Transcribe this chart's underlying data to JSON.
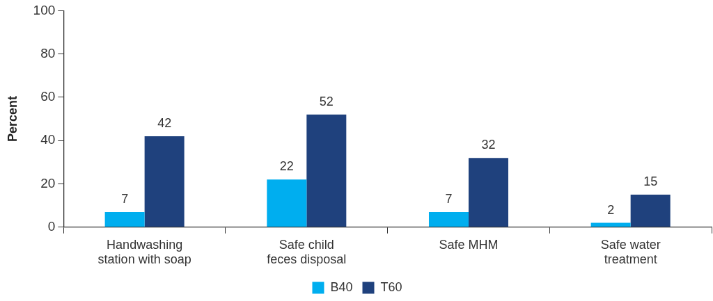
{
  "chart_data": {
    "type": "bar",
    "ylabel": "Percent",
    "categories": [
      "Handwashing station with soap",
      "Safe child feces disposal",
      "Safe MHM",
      "Safe water treatment"
    ],
    "series": [
      {
        "name": "B40",
        "color": "#00aeef",
        "values": [
          7,
          22,
          7,
          2
        ]
      },
      {
        "name": "T60",
        "color": "#1f417d",
        "values": [
          42,
          52,
          32,
          15
        ]
      }
    ],
    "ylim": [
      0,
      100
    ],
    "yticks": [
      0,
      20,
      40,
      60,
      80,
      100
    ],
    "grid": false,
    "legend": "bottom",
    "data_labels": true
  }
}
